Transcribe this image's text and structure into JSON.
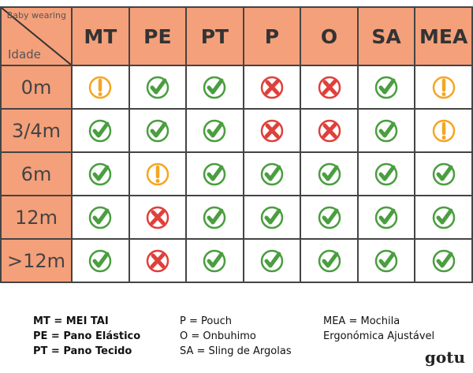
{
  "header": {
    "corner_top": "Baby wearing",
    "corner_bottom": "Idade",
    "columns": [
      "MT",
      "PE",
      "PT",
      "P",
      "O",
      "SA",
      "MEA"
    ]
  },
  "rows": [
    {
      "age": "0m",
      "values": [
        "warn",
        "ok",
        "ok",
        "no",
        "no",
        "ok",
        "warn"
      ]
    },
    {
      "age": "3/4m",
      "values": [
        "ok",
        "ok",
        "ok",
        "no",
        "no",
        "ok",
        "warn"
      ]
    },
    {
      "age": "6m",
      "values": [
        "ok",
        "warn",
        "ok",
        "ok",
        "ok",
        "ok",
        "ok"
      ]
    },
    {
      "age": "12m",
      "values": [
        "ok",
        "no",
        "ok",
        "ok",
        "ok",
        "ok",
        "ok"
      ]
    },
    {
      "age": ">12m",
      "values": [
        "ok",
        "no",
        "ok",
        "ok",
        "ok",
        "ok",
        "ok"
      ]
    }
  ],
  "legend": {
    "col1": [
      "MT = MEI TAI",
      "PE = Pano Elástico",
      "PT = Pano Tecido"
    ],
    "col2": [
      "P = Pouch",
      "O = Onbuhimo",
      "SA = Sling de Argolas"
    ],
    "col3": [
      "MEA = Mochila",
      "Ergonómica Ajustável"
    ]
  },
  "logo": "gotu",
  "colors": {
    "header_bg": "#f4a07a",
    "ok": "#4a9e3f",
    "no": "#e0403a",
    "warn": "#f5a623"
  }
}
